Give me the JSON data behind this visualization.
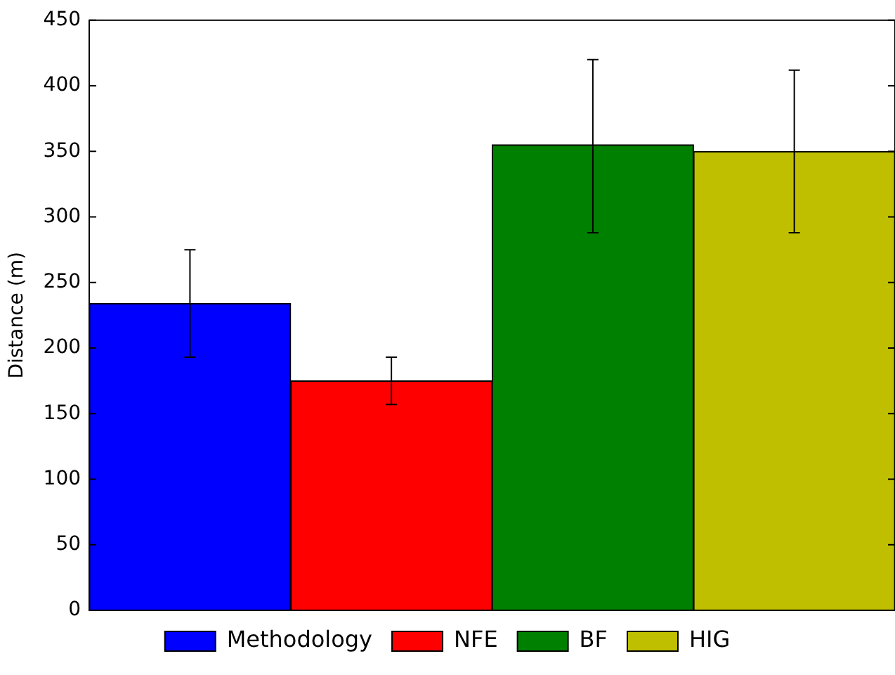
{
  "chart_data": {
    "type": "bar",
    "ylabel": "Distance (m)",
    "categories": [
      null
    ],
    "series": [
      {
        "name": "Methodology",
        "color": "#0000ff",
        "values": [
          234
        ],
        "errors": [
          [
            193,
            275
          ]
        ]
      },
      {
        "name": "NFE",
        "color": "#ff0000",
        "values": [
          175
        ],
        "errors": [
          [
            157,
            193
          ]
        ]
      },
      {
        "name": "BF",
        "color": "#008000",
        "values": [
          355
        ],
        "errors": [
          [
            288,
            420
          ]
        ]
      },
      {
        "name": "HIG",
        "color": "#bfbf00",
        "values": [
          350
        ],
        "errors": [
          [
            288,
            412
          ]
        ]
      }
    ],
    "ylim": [
      0,
      450
    ],
    "yticks": [
      0,
      50,
      100,
      150,
      200,
      250,
      300,
      350,
      400,
      450
    ],
    "grid": false,
    "legend": "bottom",
    "tick_labels": "y"
  }
}
